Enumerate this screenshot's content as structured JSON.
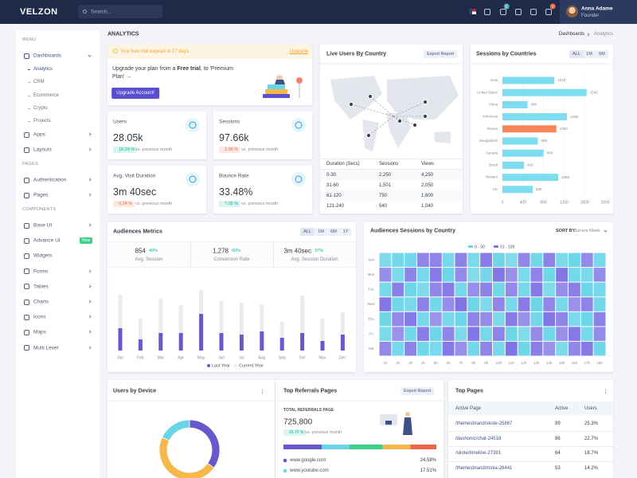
{
  "topbar": {
    "logo": "velzon",
    "search_placeholder": "Search...",
    "cart_badge": "5",
    "notification_badge": "3",
    "user": {
      "name": "Anna Adame",
      "role": "Founder"
    }
  },
  "sidebar": {
    "sections": [
      {
        "title": "MENU",
        "items": [
          {
            "label": "Dashboards",
            "expandable": true,
            "sub": [
              "Analytics",
              "CRM",
              "Ecommerce",
              "Crypto",
              "Projects"
            ]
          },
          {
            "label": "Apps",
            "expandable": true
          },
          {
            "label": "Layouts",
            "expandable": true
          }
        ]
      },
      {
        "title": "PAGES",
        "items": [
          {
            "label": "Authentication",
            "expandable": true
          },
          {
            "label": "Pages",
            "expandable": true
          }
        ]
      },
      {
        "title": "COMPONENTS",
        "items": [
          {
            "label": "Base UI",
            "expandable": true
          },
          {
            "label": "Advance UI",
            "badge": "New"
          },
          {
            "label": "Widgets",
            "expandable": false
          },
          {
            "label": "Forms",
            "expandable": true
          },
          {
            "label": "Tables",
            "expandable": true
          },
          {
            "label": "Charts",
            "expandable": true
          },
          {
            "label": "Icons",
            "expandable": true
          },
          {
            "label": "Maps",
            "expandable": true
          },
          {
            "label": "Multi Level",
            "expandable": true
          }
        ]
      }
    ]
  },
  "page": {
    "title": "ANALYTICS",
    "breadcrumb": [
      "Dashboards",
      "Analytics"
    ]
  },
  "upgrade_card": {
    "alert": "Your free trial expired in 17 days.",
    "alert_link": "Upgrade",
    "message": [
      "Upgrade your plan from a ",
      "Free trial",
      ", to 'Premium Plan' →"
    ],
    "button": "Upgrade Account!"
  },
  "stats": [
    {
      "label": "Users",
      "value": "28.05k",
      "change": "16.24 %",
      "trend": "up",
      "note": "vs. previous month"
    },
    {
      "label": "Sessions",
      "value": "97.66k",
      "change": "3.96 %",
      "trend": "down",
      "note": "vs. previous month"
    },
    {
      "label": "Avg. Visit Duration",
      "value": "3m 40sec",
      "change": "0.24 %",
      "trend": "down",
      "note": "vs. previous month"
    },
    {
      "label": "Bounce Rate",
      "value": "33.48%",
      "change": "7.05 %",
      "trend": "up",
      "note": "vs. previous month"
    }
  ],
  "live_users": {
    "title": "Live Users By Country",
    "button": "Export Report",
    "table": {
      "columns": [
        "Duration (Secs)",
        "Sessions",
        "Views"
      ],
      "rows": [
        [
          "0-30",
          "2,250",
          "4,250"
        ],
        [
          "31-60",
          "1,501",
          "2,050"
        ],
        [
          "61-120",
          "750",
          "1,600"
        ],
        [
          "121-240",
          "540",
          "1,040"
        ]
      ]
    }
  },
  "sessions_by_countries": {
    "title": "Sessions by Countries",
    "filters": [
      "ALL",
      "1M",
      "6M"
    ],
    "chart": {
      "type": "bar",
      "orientation": "horizontal",
      "categories": [
        "India",
        "United States",
        "China",
        "Indonesia",
        "Russia",
        "Bangladesh",
        "Canada",
        "Brazil",
        "Vietnam",
        "UK"
      ],
      "values": [
        1010,
        1640,
        490,
        1255,
        1050,
        689,
        800,
        420,
        1085,
        589
      ],
      "colors": [
        "#7ddcef",
        "#7ddcef",
        "#7ddcef",
        "#7ddcef",
        "#f7855a",
        "#7ddcef",
        "#7ddcef",
        "#7ddcef",
        "#7ddcef",
        "#7ddcef"
      ],
      "xlim": [
        0,
        2000
      ],
      "xticks": [
        0,
        400,
        800,
        1200,
        1600,
        2000
      ]
    }
  },
  "audiences_metrics": {
    "title": "Audiences Metrics",
    "filters": [
      "ALL",
      "1M",
      "6M",
      "1Y"
    ],
    "summary": [
      {
        "value": "854",
        "change": "49%",
        "label": "Avg. Session"
      },
      {
        "value": "1,278",
        "change": "60%",
        "label": "Conversion Rate"
      },
      {
        "value": "3m 40sec",
        "change": "37%",
        "label": "Avg. Session Duration"
      }
    ],
    "chart": {
      "type": "stacked-bar",
      "categories": [
        "Jan",
        "Feb",
        "Mar",
        "Apr",
        "May",
        "Jun",
        "Jul",
        "Aug",
        "Sep",
        "Oct",
        "Nov",
        "Dec"
      ],
      "series": [
        {
          "name": "Last Year",
          "color": "#6559cc",
          "values": [
            28,
            14,
            22,
            22,
            46,
            22,
            20,
            24,
            16,
            22,
            12,
            20
          ]
        },
        {
          "name": "Current Year",
          "color": "#e9ebec",
          "values": [
            42,
            26,
            43,
            35,
            30,
            40,
            40,
            34,
            20,
            47,
            28,
            28
          ]
        }
      ]
    }
  },
  "audiences_sessions": {
    "title": "Audiences Sessions by Country",
    "sort_label": "SORT BY:",
    "sort_value": "Current Week",
    "chart": {
      "type": "heatmap",
      "ranges": [
        {
          "from": 0,
          "to": 50,
          "name": "0 - 50",
          "color": "#6ad5e8"
        },
        {
          "from": 51,
          "to": 100,
          "name": "51 - 100",
          "color": "#7b6fe4"
        }
      ],
      "rows": [
        "Sun",
        "Mon",
        "Tue",
        "Wed",
        "Thu",
        "Fri",
        "Sat"
      ],
      "columns": [
        "1h",
        "2h",
        "3h",
        "4h",
        "5h",
        "6h",
        "7h",
        "8h",
        "9h",
        "10h",
        "11h",
        "12h",
        "13h",
        "14h",
        "15h",
        "16h",
        "17h",
        "18h"
      ],
      "values": [
        [
          22,
          35,
          41,
          68,
          72,
          30,
          77,
          28,
          81,
          44,
          19,
          66,
          38,
          74,
          25,
          47,
          63,
          31
        ],
        [
          58,
          26,
          71,
          33,
          84,
          49,
          62,
          18,
          37,
          90,
          55,
          27,
          70,
          42,
          88,
          36,
          24,
          61
        ],
        [
          31,
          79,
          45,
          22,
          67,
          83,
          29,
          56,
          74,
          40,
          65,
          33,
          85,
          21,
          59,
          78,
          46,
          34
        ],
        [
          88,
          40,
          27,
          75,
          36,
          58,
          92,
          44,
          23,
          69,
          31,
          82,
          48,
          66,
          30,
          53,
          71,
          39
        ],
        [
          43,
          64,
          86,
          29,
          51,
          34,
          47,
          73,
          61,
          26,
          80,
          57,
          35,
          91,
          68,
          28,
          45,
          76
        ],
        [
          27,
          52,
          38,
          80,
          45,
          69,
          25,
          88,
          34,
          72,
          48,
          21,
          63,
          39,
          54,
          87,
          32,
          60
        ],
        [
          65,
          33,
          74,
          41,
          28,
          87,
          56,
          37,
          70,
          29,
          94,
          46,
          78,
          52,
          23,
          67,
          84,
          42
        ]
      ]
    }
  },
  "users_by_device": {
    "title": "Users by Device",
    "chart": {
      "type": "donut",
      "values": [
        35,
        47,
        18
      ],
      "colors": [
        "#6559cc",
        "#f7b84b",
        "#6ad5e8"
      ]
    }
  },
  "top_referrals": {
    "title": "Top Referrals Pages",
    "button": "Export Report",
    "total_label": "TOTAL REFERRALS PAGE",
    "total": "725,800",
    "change": "15.72 %",
    "note": "vs. previous month",
    "bar": {
      "values": [
        25,
        18,
        22,
        18,
        17
      ],
      "colors": [
        "#6559cc",
        "#6ad5e8",
        "#3cd188",
        "#f7b84b",
        "#f06548"
      ]
    },
    "sources": [
      {
        "name": "www.google.com",
        "share": "24.58%",
        "color": "#6559cc"
      },
      {
        "name": "www.youtube.com",
        "share": "17.51%",
        "color": "#6ad5e8"
      }
    ]
  },
  "top_pages": {
    "title": "Top Pages",
    "columns": [
      "Active Page",
      "Active",
      "Users"
    ],
    "rows": [
      [
        "/themesbrand/skote-25867",
        "99",
        "25.3%"
      ],
      [
        "/dashonic/chat-24518",
        "86",
        "22.7%"
      ],
      [
        "/skote/timeline-27391",
        "64",
        "18.7%"
      ],
      [
        "/themesbrand/minia-26441",
        "53",
        "14.2%"
      ]
    ]
  }
}
